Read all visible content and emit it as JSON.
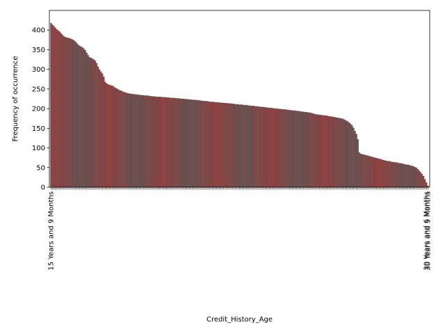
{
  "chart_data": {
    "type": "bar",
    "xlabel": "Credit_History_Age",
    "ylabel": "Frequency of occurrence",
    "ylim": [
      0,
      450
    ],
    "yticks": [
      0,
      50,
      100,
      150,
      200,
      250,
      300,
      350,
      400
    ],
    "bar_color": "#6b4f4f",
    "edge_color": "#8b1a1a",
    "visible_tick_labels": [
      "15 Years and 9 Months",
      "30 Years and 6 Months",
      "30 Years and 5 Months"
    ],
    "values": [
      418,
      414,
      410,
      406,
      402,
      399,
      396,
      392,
      388,
      384,
      382,
      381,
      380,
      379,
      378,
      376,
      374,
      371,
      367,
      363,
      360,
      358,
      356,
      353,
      349,
      342,
      336,
      331,
      329,
      327,
      325,
      322,
      316,
      307,
      300,
      294,
      289,
      281,
      268,
      264,
      262,
      260,
      259,
      258,
      256,
      253,
      251,
      249,
      247,
      246,
      244,
      242,
      241,
      240,
      239,
      238,
      238,
      237,
      237,
      236,
      236,
      235,
      235,
      234,
      234,
      234,
      233,
      233,
      233,
      232,
      232,
      231,
      231,
      231,
      230,
      230,
      230,
      230,
      229,
      229,
      229,
      228,
      228,
      228,
      227,
      227,
      227,
      227,
      226,
      226,
      226,
      225,
      225,
      225,
      224,
      224,
      224,
      223,
      223,
      223,
      222,
      222,
      222,
      221,
      221,
      220,
      220,
      219,
      219,
      219,
      218,
      218,
      217,
      217,
      217,
      216,
      216,
      216,
      215,
      215,
      215,
      214,
      214,
      214,
      213,
      213,
      213,
      212,
      212,
      211,
      211,
      211,
      210,
      210,
      210,
      209,
      209,
      209,
      208,
      208,
      207,
      207,
      207,
      206,
      206,
      205,
      205,
      204,
      204,
      204,
      203,
      203,
      202,
      202,
      202,
      201,
      201,
      200,
      200,
      200,
      199,
      199,
      198,
      198,
      198,
      197,
      197,
      196,
      196,
      195,
      195,
      195,
      194,
      194,
      193,
      193,
      192,
      192,
      191,
      191,
      190,
      190,
      189,
      188,
      187,
      186,
      185,
      185,
      184,
      184,
      183,
      183,
      182,
      182,
      181,
      180,
      180,
      179,
      179,
      178,
      177,
      177,
      176,
      175,
      174,
      173,
      171,
      169,
      167,
      164,
      161,
      157,
      151,
      143,
      135,
      122,
      88,
      85,
      84,
      83,
      82,
      81,
      80,
      79,
      78,
      77,
      76,
      75,
      74,
      73,
      72,
      71,
      70,
      69,
      68,
      67,
      66,
      66,
      65,
      64,
      64,
      63,
      63,
      62,
      61,
      61,
      60,
      59,
      58,
      57,
      57,
      56,
      55,
      54,
      53,
      51,
      49,
      46,
      42,
      38,
      33,
      28,
      20,
      12,
      4
    ]
  }
}
